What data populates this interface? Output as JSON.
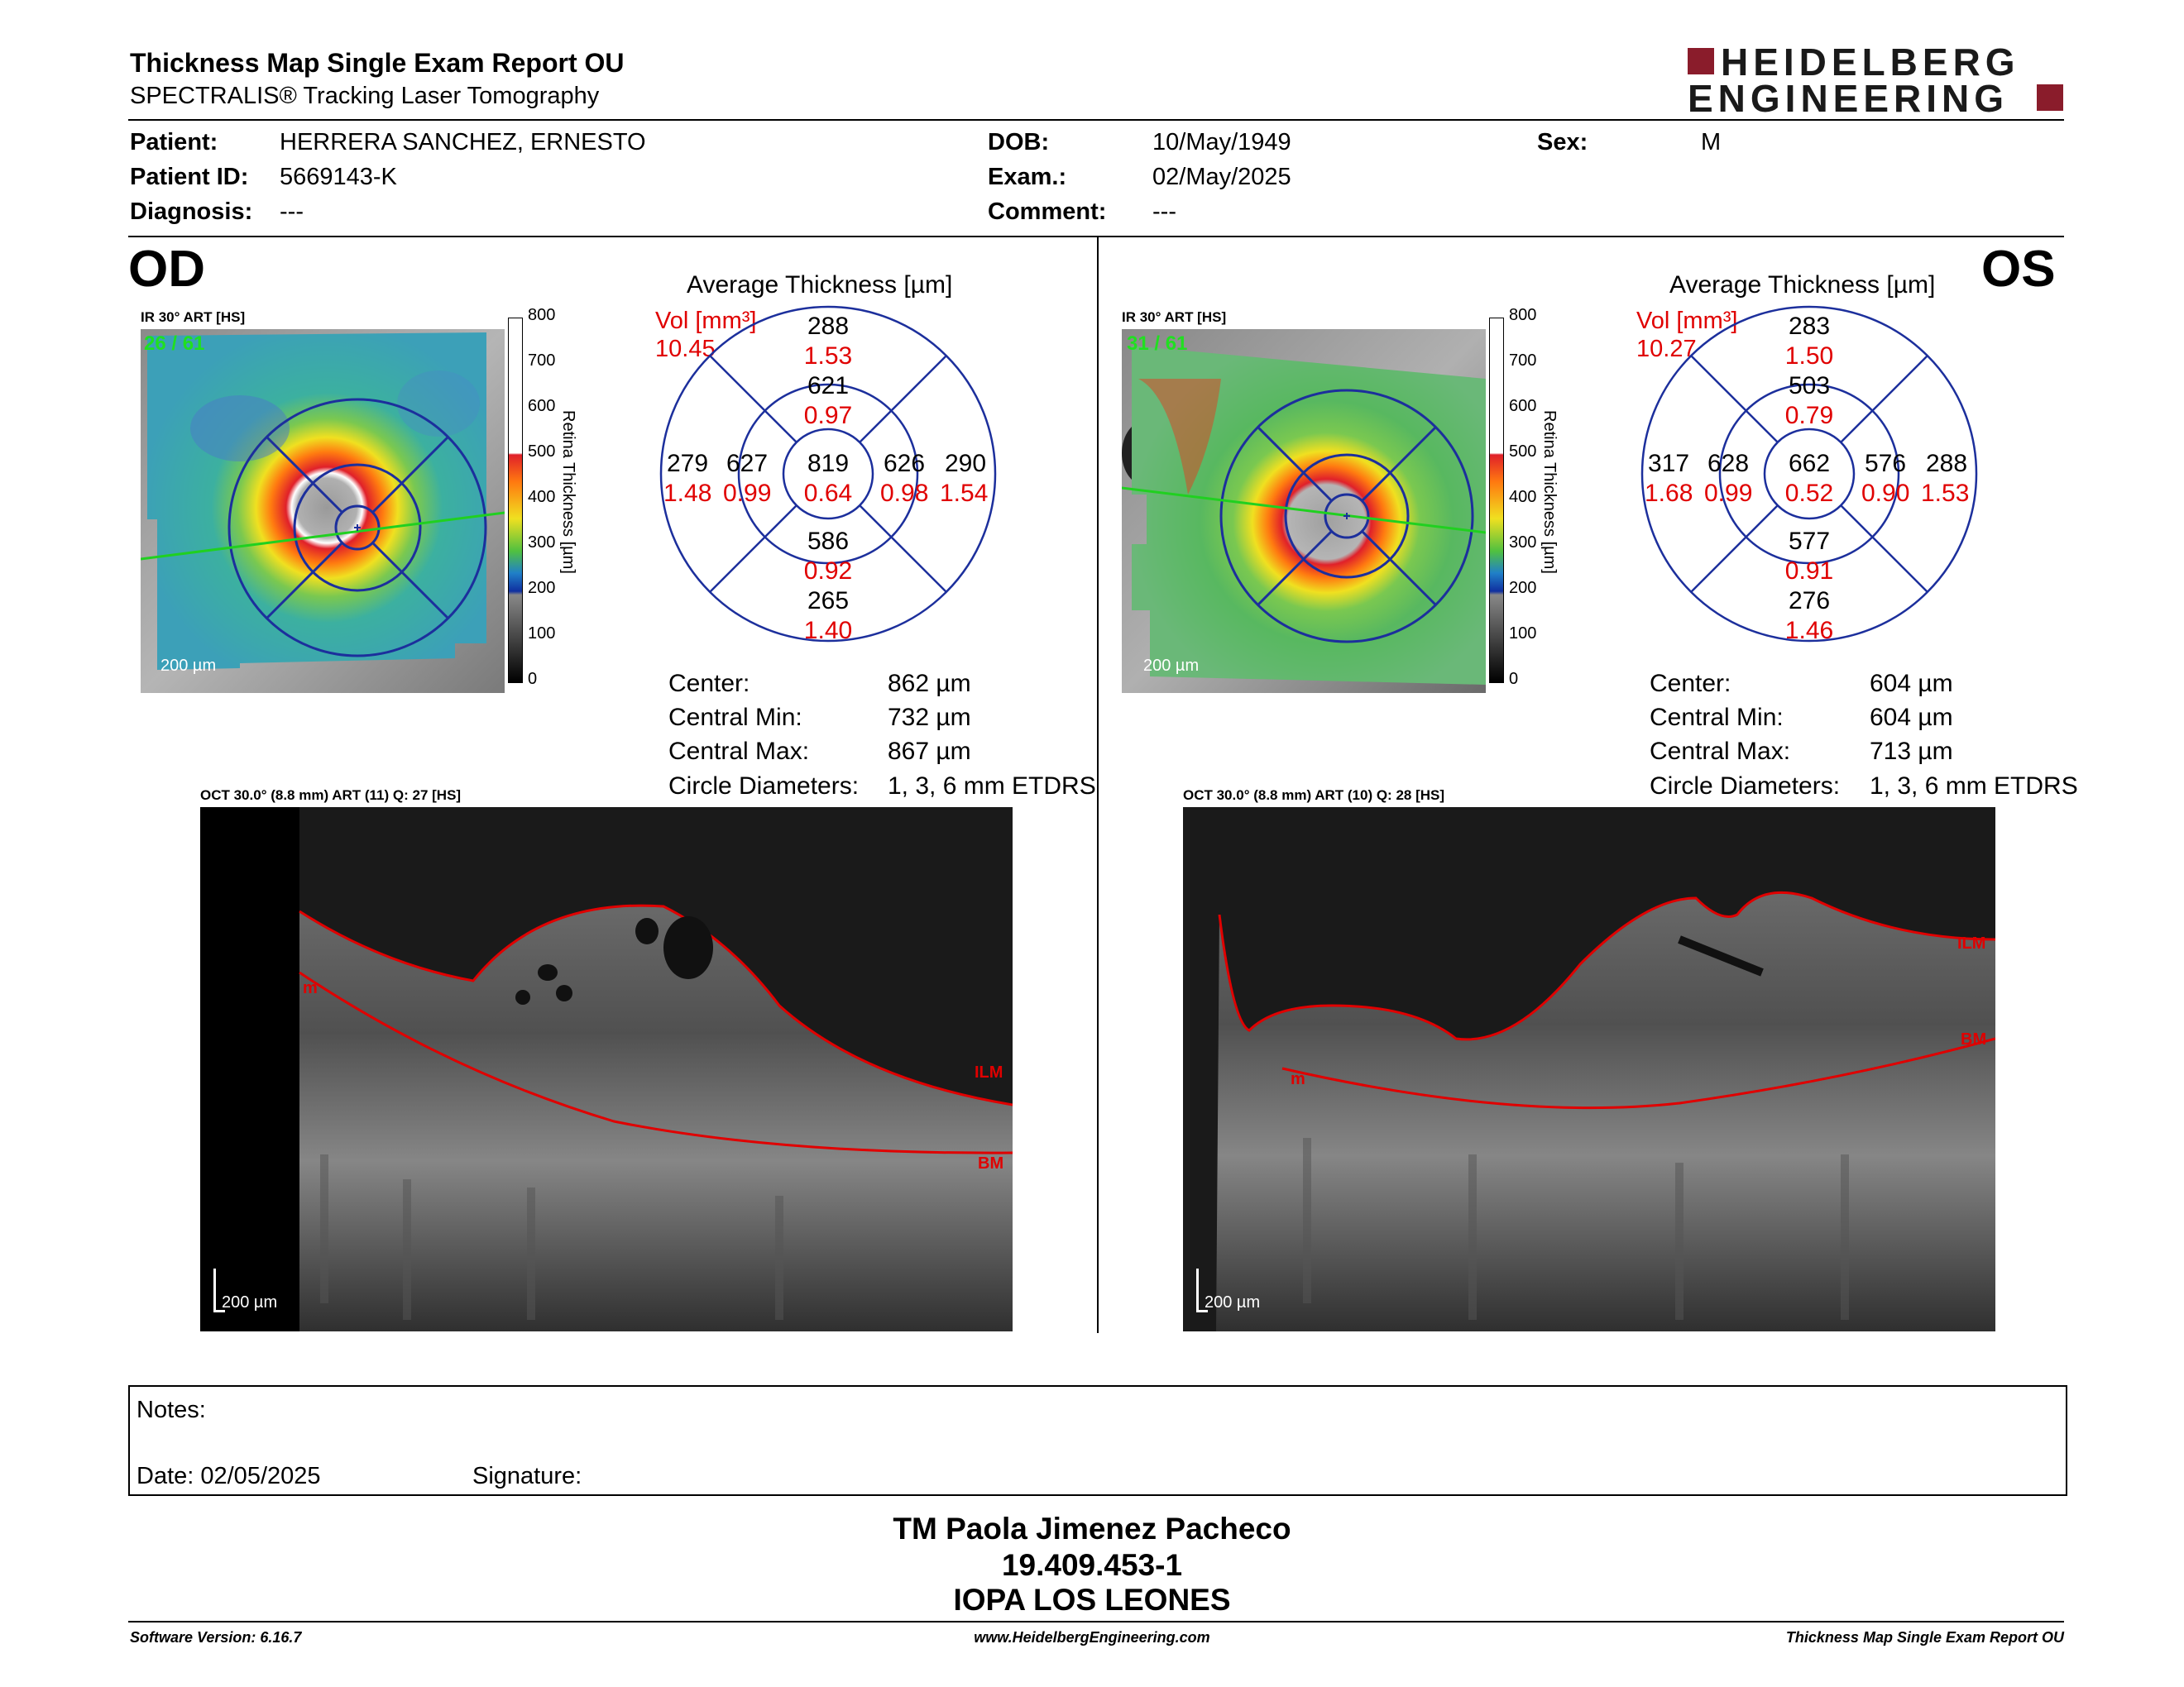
{
  "header": {
    "title": "Thickness Map Single Exam Report OU",
    "subtitle": "SPECTRALIS® Tracking Laser Tomography",
    "logo_line1": "HEIDELBERG",
    "logo_line2": "ENGINEERING"
  },
  "patient": {
    "patient_label": "Patient:",
    "patient_value": "HERRERA  SANCHEZ, ERNESTO",
    "id_label": "Patient ID:",
    "id_value": "5669143-K",
    "diag_label": "Diagnosis:",
    "diag_value": "---",
    "dob_label": "DOB:",
    "dob_value": "10/May/1949",
    "exam_label": "Exam.:",
    "exam_value": "02/May/2025",
    "comment_label": "Comment:",
    "comment_value": "---",
    "sex_label": "Sex:",
    "sex_value": "M"
  },
  "scale": {
    "ticks": [
      "800",
      "700",
      "600",
      "500",
      "400",
      "300",
      "200",
      "100",
      "0"
    ],
    "label": "Retina  Thickness [µm]"
  },
  "od": {
    "eye": "OD",
    "ir_label": "IR 30° ART [HS]",
    "frame_count": "26 / 61",
    "scalebar": "200 µm",
    "etdrs_title": "Average Thickness [µm]",
    "vol_label": "Vol [mm³]",
    "vol_value": "10.45",
    "etdrs": {
      "sup_outer": "288",
      "sup_outer_vol": "1.53",
      "sup_inner": "621",
      "sup_inner_vol": "0.97",
      "temp_outer": "279",
      "temp_outer_vol": "1.48",
      "temp_inner": "627",
      "temp_inner_vol": "0.99",
      "center": "819",
      "center_vol": "0.64",
      "nas_inner": "626",
      "nas_inner_vol": "0.98",
      "nas_outer": "290",
      "nas_outer_vol": "1.54",
      "inf_inner": "586",
      "inf_inner_vol": "0.92",
      "inf_outer": "265",
      "inf_outer_vol": "1.40"
    },
    "stats": {
      "center_label": "Center:",
      "center_value": "862 µm",
      "min_label": "Central Min:",
      "min_value": "732 µm",
      "max_label": "Central Max:",
      "max_value": "867 µm",
      "circ_label": "Circle Diameters:",
      "circ_value": "1, 3, 6 mm ETDRS"
    },
    "oct_label": "OCT 30.0° (8.8 mm) ART (11) Q: 27 [HS]",
    "oct_scalebar": "200 µm",
    "ilm": "ILM",
    "bm": "BM",
    "m": "m"
  },
  "os": {
    "eye": "OS",
    "ir_label": "IR 30° ART [HS]",
    "frame_count": "31 / 61",
    "scalebar": "200 µm",
    "etdrs_title": "Average Thickness [µm]",
    "vol_label": "Vol [mm³]",
    "vol_value": "10.27",
    "etdrs": {
      "sup_outer": "283",
      "sup_outer_vol": "1.50",
      "sup_inner": "503",
      "sup_inner_vol": "0.79",
      "temp_outer": "317",
      "temp_outer_vol": "1.68",
      "temp_inner": "628",
      "temp_inner_vol": "0.99",
      "center": "662",
      "center_vol": "0.52",
      "nas_inner": "576",
      "nas_inner_vol": "0.90",
      "nas_outer": "288",
      "nas_outer_vol": "1.53",
      "inf_inner": "577",
      "inf_inner_vol": "0.91",
      "inf_outer": "276",
      "inf_outer_vol": "1.46"
    },
    "stats": {
      "center_label": "Center:",
      "center_value": "604 µm",
      "min_label": "Central Min:",
      "min_value": "604 µm",
      "max_label": "Central Max:",
      "max_value": "713 µm",
      "circ_label": "Circle Diameters:",
      "circ_value": "1, 3, 6 mm ETDRS"
    },
    "oct_label": "OCT 30.0° (8.8 mm) ART (10) Q: 28 [HS]",
    "oct_scalebar": "200 µm",
    "ilm": "ILM",
    "bm": "BM",
    "m": "m"
  },
  "notes": {
    "notes_label": "Notes:",
    "date_label": "Date: 02/05/2025",
    "signature_label": "Signature:"
  },
  "signature": {
    "line1": "TM Paola Jimenez Pacheco",
    "line2": "19.409.453-1",
    "line3": "IOPA LOS LEONES"
  },
  "footer": {
    "software": "Software Version: 6.16.7",
    "website": "www.HeidelbergEngineering.com",
    "report": "Thickness Map Single Exam Report OU"
  },
  "colors": {
    "red": "#e00000",
    "etdrs_blue": "#1c2f9c",
    "brand": "#8a1c2b"
  }
}
